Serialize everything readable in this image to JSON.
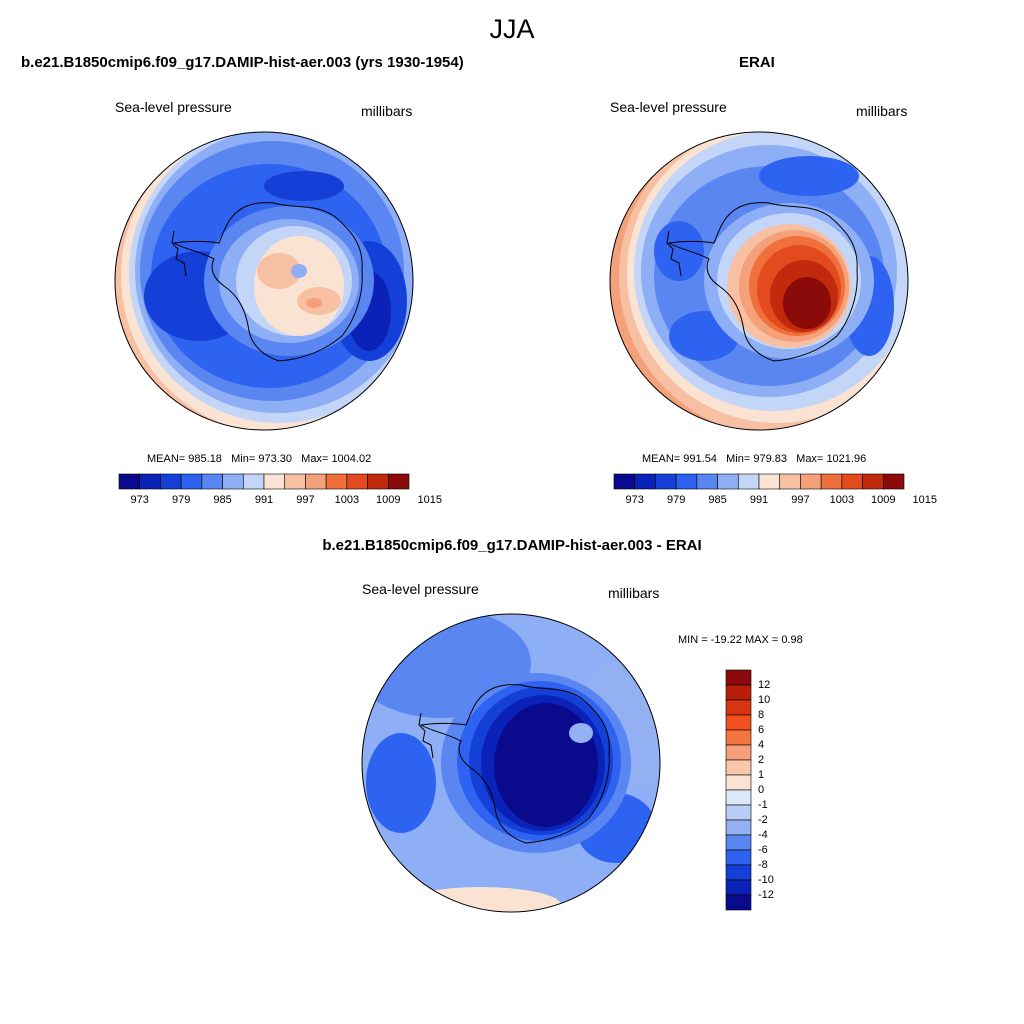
{
  "figure": {
    "title": "JJA"
  },
  "panels": [
    {
      "title": "b.e21.B1850cmip6.f09_g17.DAMIP-hist-aer.003 (yrs 1930-1954)",
      "variable": "Sea-level pressure",
      "units": "millibars",
      "stats": {
        "mean_label": "MEAN=",
        "mean": "985.18",
        "min_label": "Min=",
        "min": "973.30",
        "max_label": "Max=",
        "max": "1004.02"
      },
      "colorbar_ticks": [
        "973",
        "979",
        "985",
        "991",
        "997",
        "1003",
        "1009",
        "1015"
      ]
    },
    {
      "title": "ERAI",
      "variable": "Sea-level pressure",
      "units": "millibars",
      "stats": {
        "mean_label": "MEAN=",
        "mean": "991.54",
        "min_label": "Min=",
        "min": "979.83",
        "max_label": "Max=",
        "max": "1021.96"
      },
      "colorbar_ticks": [
        "973",
        "979",
        "985",
        "991",
        "997",
        "1003",
        "1009",
        "1015"
      ]
    },
    {
      "title": "b.e21.B1850cmip6.f09_g17.DAMIP-hist-aer.003 - ERAI",
      "variable": "Sea-level pressure",
      "units": "millibars",
      "stats": {
        "text": "MIN = -19.22 MAX =   0.98"
      },
      "colorbar_ticks": [
        "12",
        "10",
        "8",
        "6",
        "4",
        "2",
        "1",
        "0",
        "-1",
        "-2",
        "-4",
        "-6",
        "-8",
        "-10",
        "-12"
      ]
    }
  ],
  "colors": {
    "abs_scale": [
      "#0a0a8c",
      "#0b22b8",
      "#1440d8",
      "#2e62f0",
      "#5a86f2",
      "#8eaef5",
      "#c4d6f8",
      "#fbe3d3",
      "#f7c0a2",
      "#f4a07a",
      "#f0703c",
      "#e34a1d",
      "#c22a0e",
      "#8b0a0a"
    ],
    "diff_scale": [
      "#8b0a0a",
      "#b81e0a",
      "#d73512",
      "#f2501e",
      "#f4763e",
      "#f5a07a",
      "#f8c8a8",
      "#fbe3d3",
      "#dde8f8",
      "#b8cef7",
      "#92b0f2",
      "#5a86f2",
      "#2e62f0",
      "#1440d8",
      "#0b22b8",
      "#0a0a8c"
    ],
    "coastline": "#000000"
  }
}
